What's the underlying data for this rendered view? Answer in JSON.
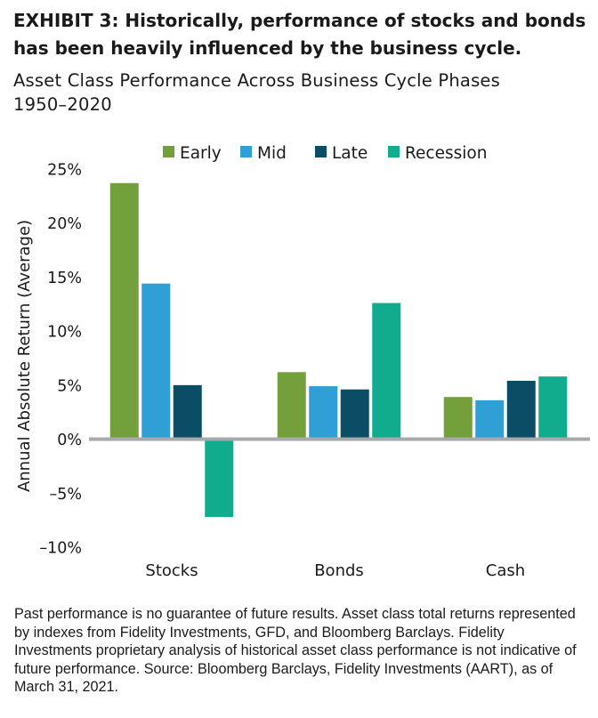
{
  "exhibit_title": "EXHIBIT 3: Historically, performance of stocks and bonds has been heavily influenced by the business cycle.",
  "chart_title_line1": "Asset Class Performance Across Business Cycle Phases",
  "chart_title_line2": "1950–2020",
  "footnote": "Past performance is no guarantee of future results. Asset class total returns represented by indexes from Fidelity Investments, GFD, and Bloomberg Barclays. Fidelity Investments proprietary analysis of historical asset class performance is not indicative of future performance. Source: Bloomberg Barclays, Fidelity Investments (AART), as of March 31, 2021.",
  "chart_data": {
    "type": "bar",
    "title": "Asset Class Performance Across Business Cycle Phases",
    "subtitle": "1950–2020",
    "ylabel": "Annual Absolute Return (Average)",
    "xlabel": "",
    "categories": [
      "Stocks",
      "Bonds",
      "Cash"
    ],
    "series": [
      {
        "name": "Early",
        "color": "#73a03b",
        "values": [
          23.7,
          6.2,
          3.9
        ]
      },
      {
        "name": "Mid",
        "color": "#2f9fd6",
        "values": [
          14.4,
          4.9,
          3.6
        ]
      },
      {
        "name": "Late",
        "color": "#0c4d66",
        "values": [
          5.0,
          4.6,
          5.4
        ]
      },
      {
        "name": "Recession",
        "color": "#11ab8d",
        "values": [
          -7.2,
          12.6,
          5.8
        ]
      }
    ],
    "ylim": [
      -10,
      25
    ],
    "yticks": [
      25,
      20,
      15,
      10,
      5,
      0,
      -5,
      -10
    ],
    "ytick_labels": [
      "25%",
      "20%",
      "15%",
      "10%",
      "5%",
      "0%",
      "–5%",
      "–10%"
    ],
    "grid": false,
    "legend_position": "top"
  }
}
